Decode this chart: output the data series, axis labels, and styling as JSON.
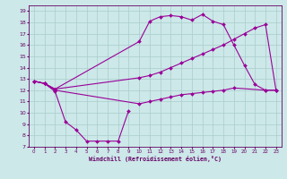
{
  "xlabel": "Windchill (Refroidissement éolien,°C)",
  "background_color": "#cce8e8",
  "grid_color": "#aacccc",
  "line_color": "#990099",
  "spine_color": "#660066",
  "xlim": [
    -0.5,
    23.5
  ],
  "ylim": [
    7,
    19.5
  ],
  "xticks": [
    0,
    1,
    2,
    3,
    4,
    5,
    6,
    7,
    8,
    9,
    10,
    11,
    12,
    13,
    14,
    15,
    16,
    17,
    18,
    19,
    20,
    21,
    22,
    23
  ],
  "yticks": [
    7,
    8,
    9,
    10,
    11,
    12,
    13,
    14,
    15,
    16,
    17,
    18,
    19
  ],
  "line1_x": [
    0,
    1,
    2,
    3,
    4,
    5,
    6,
    7,
    8,
    9
  ],
  "line1_y": [
    12.8,
    12.6,
    11.9,
    9.2,
    8.5,
    7.5,
    7.5,
    7.5,
    7.5,
    10.2
  ],
  "line2_x": [
    0,
    1,
    2,
    10,
    11,
    12,
    13,
    14,
    15,
    16,
    17,
    18,
    19,
    22,
    23
  ],
  "line2_y": [
    12.8,
    12.6,
    12.0,
    10.8,
    11.0,
    11.2,
    11.4,
    11.6,
    11.7,
    11.8,
    11.9,
    12.0,
    12.2,
    12.0,
    12.0
  ],
  "line3_x": [
    0,
    1,
    2,
    10,
    11,
    12,
    13,
    14,
    15,
    16,
    17,
    18,
    19,
    20,
    21,
    22,
    23
  ],
  "line3_y": [
    12.8,
    12.6,
    12.1,
    13.1,
    13.3,
    13.6,
    14.0,
    14.4,
    14.8,
    15.2,
    15.6,
    16.0,
    16.5,
    17.0,
    17.5,
    17.8,
    12.0
  ],
  "line4_x": [
    0,
    1,
    2,
    10,
    11,
    12,
    13,
    14,
    15,
    16,
    17,
    18,
    19,
    20,
    21,
    22,
    23
  ],
  "line4_y": [
    12.8,
    12.6,
    12.1,
    16.3,
    18.1,
    18.5,
    18.6,
    18.5,
    18.2,
    18.7,
    18.1,
    17.8,
    16.0,
    14.2,
    12.5,
    12.0,
    12.0
  ]
}
